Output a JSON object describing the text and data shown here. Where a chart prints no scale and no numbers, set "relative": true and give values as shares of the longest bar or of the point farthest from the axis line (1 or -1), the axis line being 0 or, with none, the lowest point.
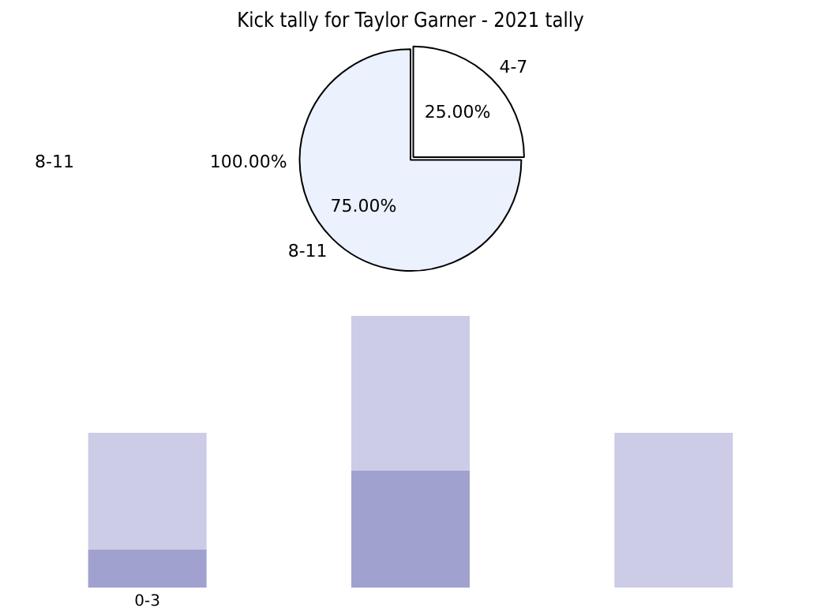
{
  "chart_data": [
    {
      "type": "pie",
      "title": "Kick tally for Taylor Garner - 2021 tally",
      "categories": [
        "4-7",
        "8-11"
      ],
      "values": [
        25,
        75
      ],
      "colors": [
        "#ffffff",
        "#ebf1fd"
      ],
      "value_labels": [
        "25.00%",
        "75.00%"
      ],
      "annotations": [
        "8-11",
        "100.00%"
      ],
      "legend": false
    },
    {
      "type": "bar",
      "stacked": true,
      "relative": true,
      "categories": [
        "0-3",
        null,
        null
      ],
      "series": [
        {
          "color": "#a1a1cf",
          "values": [
            0.14,
            0.43,
            0
          ]
        },
        {
          "color": "#ccccE6",
          "values": [
            0.43,
            0.57,
            0.57
          ]
        }
      ],
      "legend": false,
      "grid": false,
      "tick_labels": "x"
    }
  ]
}
